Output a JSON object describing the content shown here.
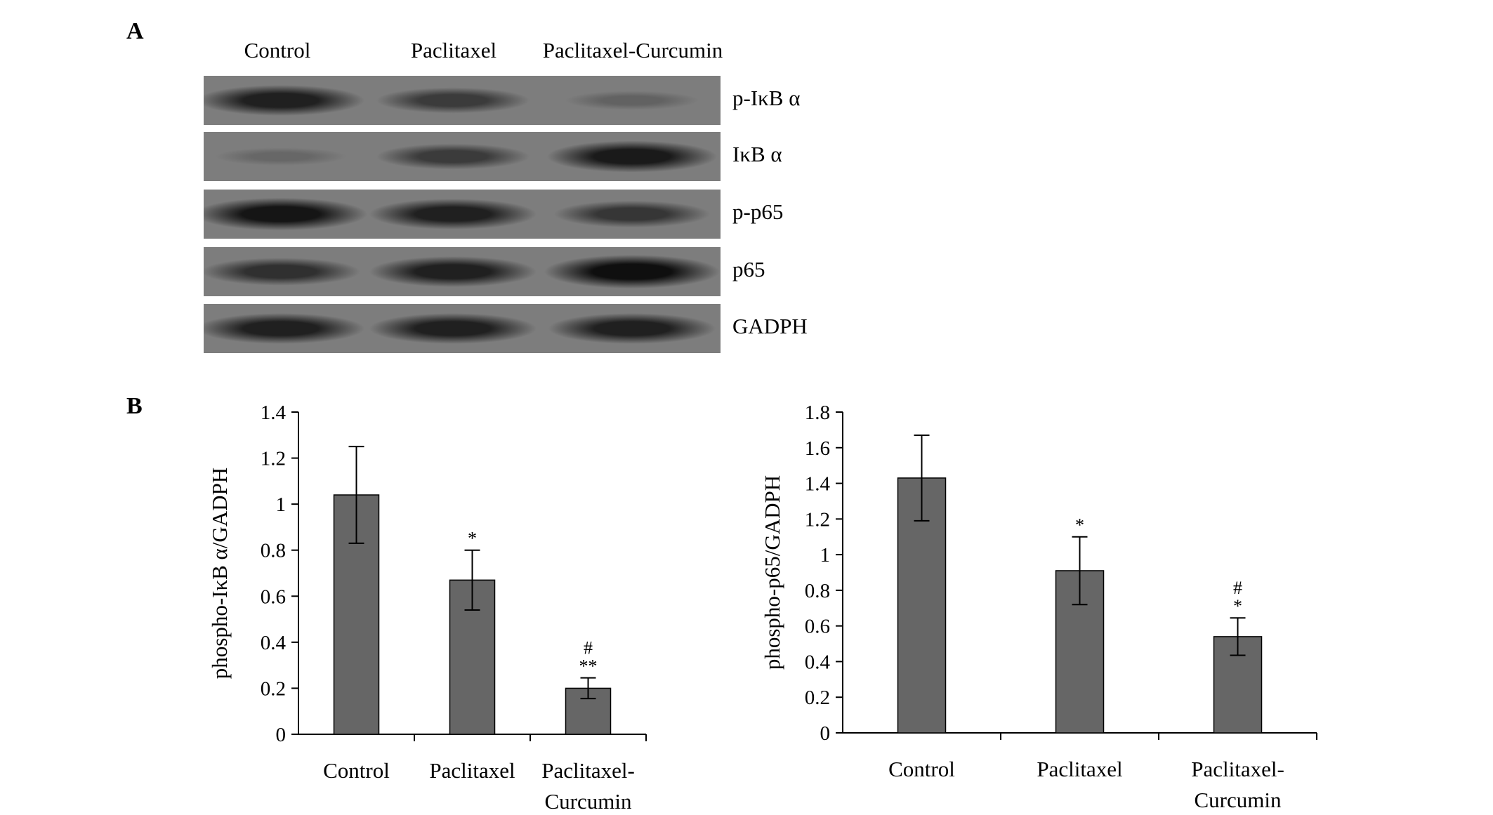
{
  "panel_a": {
    "letter": "A",
    "lanes": [
      "Control",
      "Paclitaxel",
      "Paclitaxel-Curcumin"
    ],
    "blots": [
      {
        "label": "p-IκB α",
        "intensities": [
          0.85,
          0.6,
          0.25
        ]
      },
      {
        "label": "IκB α",
        "intensities": [
          0.2,
          0.6,
          0.9
        ]
      },
      {
        "label": "p-p65",
        "intensities": [
          0.95,
          0.85,
          0.65
        ]
      },
      {
        "label": "p65",
        "intensities": [
          0.7,
          0.85,
          1.0
        ]
      },
      {
        "label": "GADPH",
        "intensities": [
          0.85,
          0.85,
          0.85
        ]
      }
    ]
  },
  "panel_b": {
    "letter": "B"
  },
  "chart_data": [
    {
      "type": "bar",
      "categories": [
        "Control",
        "Paclitaxel",
        "Paclitaxel-\nCurcumin"
      ],
      "values": [
        1.04,
        0.67,
        0.2
      ],
      "errors": [
        0.21,
        0.13,
        0.045
      ],
      "annotations": [
        "",
        "*",
        "#\n**"
      ],
      "ylabel": "phospho-IκB α/GADPH",
      "ylim": [
        0,
        1.4
      ],
      "yticks": [
        "0",
        "0.2",
        "0.4",
        "0.6",
        "0.8",
        "1",
        "1.2",
        "1.4"
      ],
      "grid": false,
      "bar_color": "#666666"
    },
    {
      "type": "bar",
      "categories": [
        "Control",
        "Paclitaxel",
        "Paclitaxel-\nCurcumin"
      ],
      "values": [
        1.43,
        0.91,
        0.54
      ],
      "errors": [
        0.24,
        0.19,
        0.105
      ],
      "annotations": [
        "",
        "*",
        "#\n*"
      ],
      "ylabel": "phospho-p65/GADPH",
      "ylim": [
        0,
        1.8
      ],
      "yticks": [
        "0",
        "0.2",
        "0.4",
        "0.6",
        "0.8",
        "1",
        "1.2",
        "1.4",
        "1.6",
        "1.8"
      ],
      "grid": false,
      "bar_color": "#666666"
    }
  ]
}
